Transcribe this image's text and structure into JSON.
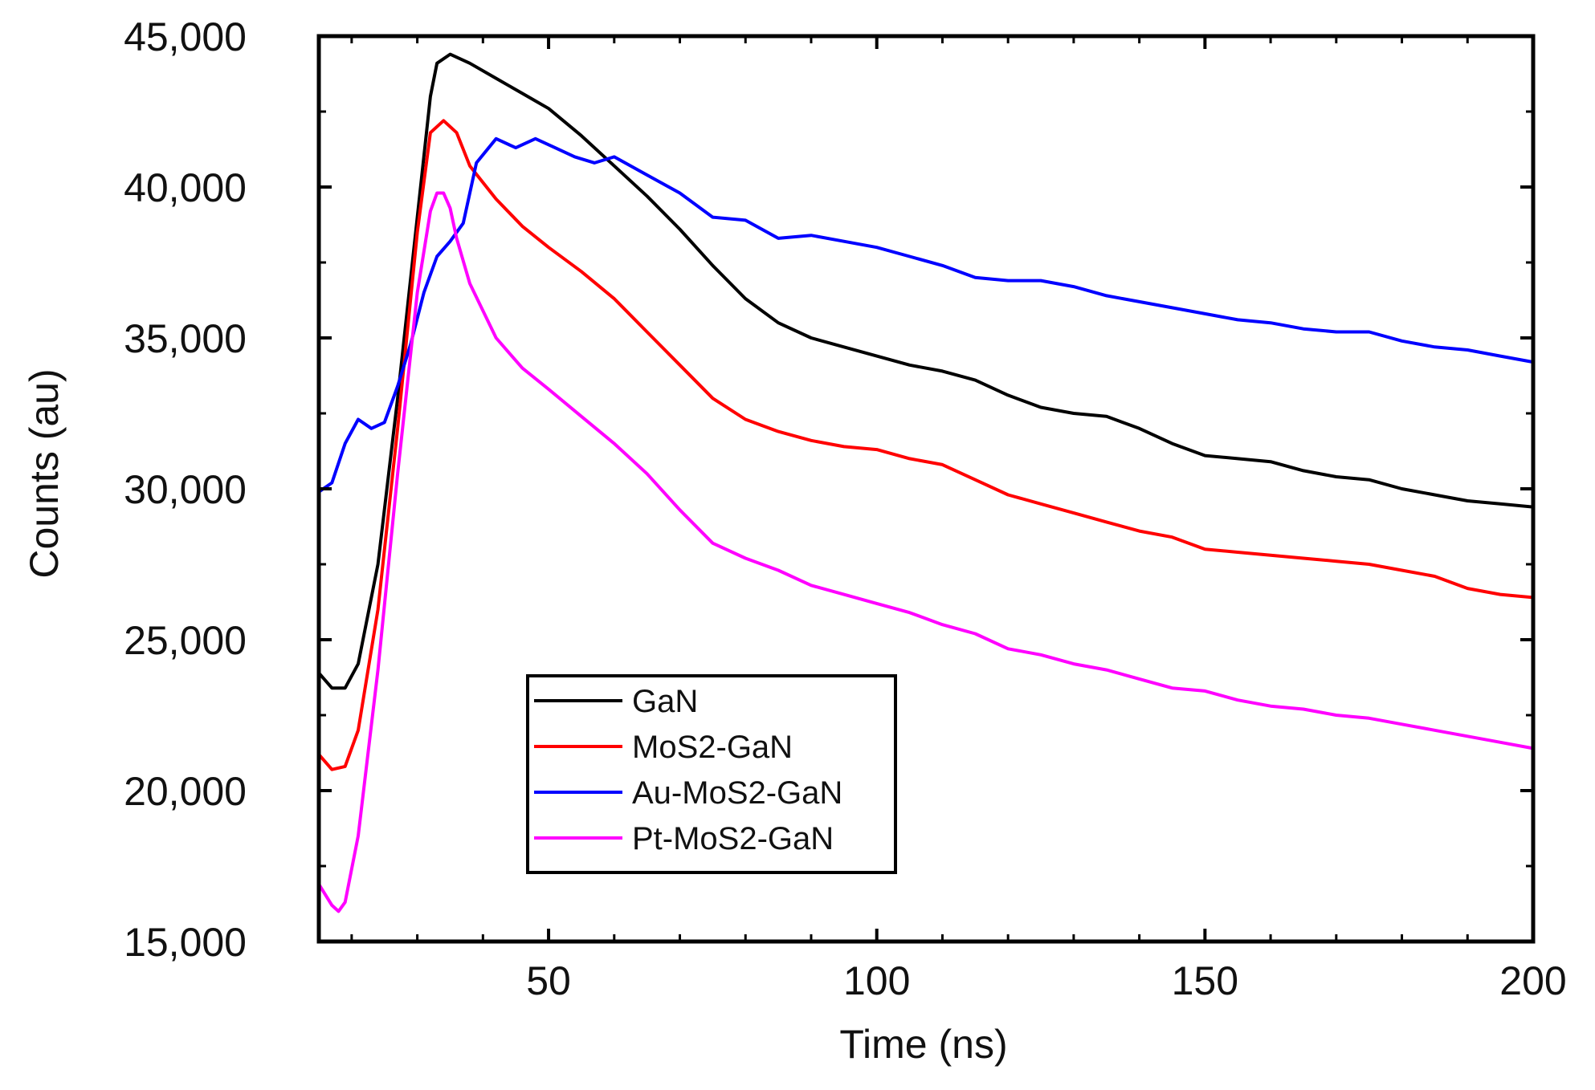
{
  "chart_data": {
    "type": "line",
    "title": "",
    "xlabel": "Time (ns)",
    "ylabel": "Counts (au)",
    "xlim": [
      15,
      200
    ],
    "ylim": [
      15000,
      45000
    ],
    "xticks": [
      50,
      100,
      150,
      200
    ],
    "xtick_labels": [
      "50",
      "100",
      "150",
      "200"
    ],
    "yticks": [
      15000,
      20000,
      25000,
      30000,
      35000,
      40000,
      45000
    ],
    "ytick_labels": [
      "15,000",
      "20,000",
      "25,000",
      "30,000",
      "35,000",
      "40,000",
      "45,000"
    ],
    "grid": false,
    "legend_position": "lower-left",
    "series": [
      {
        "name": "GaN",
        "color": "#000000",
        "x": [
          15,
          17,
          19,
          21,
          24,
          27,
          30,
          32,
          33,
          35,
          38,
          42,
          46,
          50,
          55,
          60,
          65,
          70,
          75,
          80,
          85,
          90,
          95,
          100,
          105,
          110,
          115,
          120,
          125,
          130,
          135,
          140,
          145,
          150,
          155,
          160,
          165,
          170,
          175,
          180,
          185,
          190,
          195,
          200
        ],
        "y": [
          23900,
          23400,
          23400,
          24200,
          27500,
          33000,
          39000,
          43000,
          44100,
          44400,
          44100,
          43600,
          43100,
          42600,
          41700,
          40700,
          39700,
          38600,
          37400,
          36300,
          35500,
          35000,
          34700,
          34400,
          34100,
          33900,
          33600,
          33100,
          32700,
          32500,
          32400,
          32000,
          31500,
          31100,
          31000,
          30900,
          30600,
          30400,
          30300,
          30000,
          29800,
          29600,
          29500,
          29400
        ]
      },
      {
        "name": "MoS2-GaN",
        "color": "#ff0000",
        "x": [
          15,
          17,
          19,
          21,
          24,
          27,
          30,
          32,
          34,
          36,
          38,
          42,
          46,
          50,
          55,
          60,
          65,
          70,
          75,
          80,
          85,
          90,
          95,
          100,
          105,
          110,
          115,
          120,
          125,
          130,
          135,
          140,
          145,
          150,
          155,
          160,
          165,
          170,
          175,
          180,
          185,
          190,
          195,
          200
        ],
        "y": [
          21200,
          20700,
          20800,
          22000,
          26000,
          32000,
          38500,
          41800,
          42200,
          41800,
          40700,
          39600,
          38700,
          38000,
          37200,
          36300,
          35200,
          34100,
          33000,
          32300,
          31900,
          31600,
          31400,
          31300,
          31000,
          30800,
          30300,
          29800,
          29500,
          29200,
          28900,
          28600,
          28400,
          28000,
          27900,
          27800,
          27700,
          27600,
          27500,
          27300,
          27100,
          26700,
          26500,
          26400
        ]
      },
      {
        "name": "Au-MoS2-GaN",
        "color": "#0000ff",
        "x": [
          15,
          17,
          19,
          21,
          23,
          25,
          27,
          29,
          31,
          33,
          35,
          37,
          39,
          42,
          45,
          48,
          51,
          54,
          57,
          60,
          65,
          70,
          75,
          80,
          85,
          90,
          95,
          100,
          105,
          110,
          115,
          120,
          125,
          130,
          135,
          140,
          145,
          150,
          155,
          160,
          165,
          170,
          175,
          180,
          185,
          190,
          195,
          200
        ],
        "y": [
          29900,
          30200,
          31500,
          32300,
          32000,
          32200,
          33400,
          34800,
          36500,
          37700,
          38200,
          38800,
          40800,
          41600,
          41300,
          41600,
          41300,
          41000,
          40800,
          41000,
          40400,
          39800,
          39000,
          38900,
          38300,
          38400,
          38200,
          38000,
          37700,
          37400,
          37000,
          36900,
          36900,
          36700,
          36400,
          36200,
          36000,
          35800,
          35600,
          35500,
          35300,
          35200,
          35200,
          34900,
          34700,
          34600,
          34400,
          34200
        ]
      },
      {
        "name": "Pt-MoS2-GaN",
        "color": "#ff00ff",
        "x": [
          15,
          17,
          18,
          19,
          21,
          24,
          27,
          30,
          32,
          33,
          34,
          35,
          36,
          38,
          42,
          46,
          50,
          55,
          60,
          65,
          70,
          75,
          80,
          85,
          90,
          95,
          100,
          105,
          110,
          115,
          120,
          125,
          130,
          135,
          140,
          145,
          150,
          155,
          160,
          165,
          170,
          175,
          180,
          185,
          190,
          195,
          200
        ],
        "y": [
          16900,
          16200,
          16000,
          16300,
          18500,
          24000,
          30500,
          36500,
          39200,
          39800,
          39800,
          39300,
          38300,
          36800,
          35000,
          34000,
          33300,
          32400,
          31500,
          30500,
          29300,
          28200,
          27700,
          27300,
          26800,
          26500,
          26200,
          25900,
          25500,
          25200,
          24700,
          24500,
          24200,
          24000,
          23700,
          23400,
          23300,
          23000,
          22800,
          22700,
          22500,
          22400,
          22200,
          22000,
          21800,
          21600,
          21400
        ]
      }
    ]
  }
}
